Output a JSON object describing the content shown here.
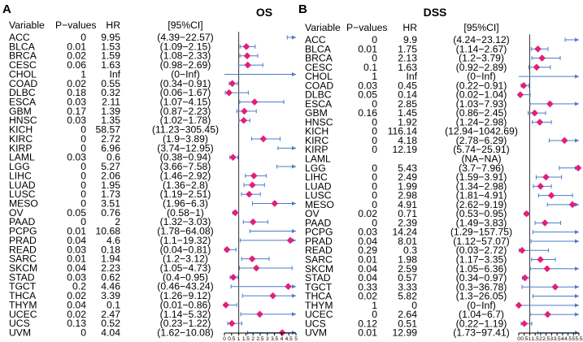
{
  "colors": {
    "ci_line": "#4a7cc9",
    "point": "#e0207a",
    "axis": "#000000",
    "reference": "#333333"
  },
  "chart_data": [
    {
      "type": "forest",
      "panel_letter": "A",
      "title": "OS",
      "column_headers": {
        "variable": "Variable",
        "pvalue": "P−values",
        "hr": "HR",
        "ci": "[95%CI]"
      },
      "axis": {
        "reference": 1,
        "xlim": [
          0,
          5
        ],
        "ticks": [
          0,
          0.5,
          1,
          1.5,
          2,
          2.5,
          3,
          3.5,
          4,
          4.5,
          5
        ],
        "tick_labels": [
          "0",
          "0.5",
          "1",
          "1.5",
          "2",
          "2.5",
          "3",
          "3.5",
          "4",
          "4.5",
          "5"
        ]
      },
      "rows": [
        {
          "variable": "ACC",
          "pvalue": "0",
          "hr_text": "9.95",
          "ci_text": "(4.39−22.57)",
          "hr": 9.95,
          "lo": 4.39,
          "hi": 22.57
        },
        {
          "variable": "BLCA",
          "pvalue": "0.01",
          "hr_text": "1.53",
          "ci_text": "(1.09−2.15)",
          "hr": 1.53,
          "lo": 1.09,
          "hi": 2.15
        },
        {
          "variable": "BRCA",
          "pvalue": "0.02",
          "hr_text": "1.59",
          "ci_text": "(1.08−2.33)",
          "hr": 1.59,
          "lo": 1.08,
          "hi": 2.33
        },
        {
          "variable": "CESC",
          "pvalue": "0.06",
          "hr_text": "1.63",
          "ci_text": "(0.98−2.69)",
          "hr": 1.63,
          "lo": 0.98,
          "hi": 2.69
        },
        {
          "variable": "CHOL",
          "pvalue": "1",
          "hr_text": "Inf",
          "ci_text": "(0−Inf)",
          "hr": null,
          "lo": 0,
          "hi": null
        },
        {
          "variable": "COAD",
          "pvalue": "0.02",
          "hr_text": "0.55",
          "ci_text": "(0.34−0.91)",
          "hr": 0.55,
          "lo": 0.34,
          "hi": 0.91
        },
        {
          "variable": "DLBC",
          "pvalue": "0.18",
          "hr_text": "0.32",
          "ci_text": "(0.06−1.67)",
          "hr": 0.32,
          "lo": 0.06,
          "hi": 1.67
        },
        {
          "variable": "ESCA",
          "pvalue": "0.03",
          "hr_text": "2.11",
          "ci_text": "(1.07−4.15)",
          "hr": 2.11,
          "lo": 1.07,
          "hi": 4.15
        },
        {
          "variable": "GBM",
          "pvalue": "0.17",
          "hr_text": "1.39",
          "ci_text": "(0.87−2.23)",
          "hr": 1.39,
          "lo": 0.87,
          "hi": 2.23
        },
        {
          "variable": "HNSC",
          "pvalue": "0.03",
          "hr_text": "1.35",
          "ci_text": "(1.02−1.78)",
          "hr": 1.35,
          "lo": 1.02,
          "hi": 1.78
        },
        {
          "variable": "KICH",
          "pvalue": "0",
          "hr_text": "58.57",
          "ci_text": "(11.23−305.45)",
          "hr": 58.57,
          "lo": 11.23,
          "hi": 305.45
        },
        {
          "variable": "KIRC",
          "pvalue": "0",
          "hr_text": "2.72",
          "ci_text": "(1.9−3.89)",
          "hr": 2.72,
          "lo": 1.9,
          "hi": 3.89
        },
        {
          "variable": "KIRP",
          "pvalue": "0",
          "hr_text": "6.96",
          "ci_text": "(3.74−12.95)",
          "hr": 6.96,
          "lo": 3.74,
          "hi": 12.95
        },
        {
          "variable": "LAML",
          "pvalue": "0.03",
          "hr_text": "0.6",
          "ci_text": "(0.38−0.94)",
          "hr": 0.6,
          "lo": 0.38,
          "hi": 0.94
        },
        {
          "variable": "LGG",
          "pvalue": "0",
          "hr_text": "5.27",
          "ci_text": "(3.66−7.58)",
          "hr": 5.27,
          "lo": 3.66,
          "hi": 7.58
        },
        {
          "variable": "LIHC",
          "pvalue": "0",
          "hr_text": "2.06",
          "ci_text": "(1.46−2.92)",
          "hr": 2.06,
          "lo": 1.46,
          "hi": 2.92
        },
        {
          "variable": "LUAD",
          "pvalue": "0",
          "hr_text": "1.95",
          "ci_text": "(1.36−2.8)",
          "hr": 1.95,
          "lo": 1.36,
          "hi": 2.8
        },
        {
          "variable": "LUSC",
          "pvalue": "0",
          "hr_text": "1.73",
          "ci_text": "(1.19−2.51)",
          "hr": 1.73,
          "lo": 1.19,
          "hi": 2.51
        },
        {
          "variable": "MESO",
          "pvalue": "0",
          "hr_text": "3.51",
          "ci_text": "(1.96−6.3)",
          "hr": 3.51,
          "lo": 1.96,
          "hi": 6.3
        },
        {
          "variable": "OV",
          "pvalue": "0.05",
          "hr_text": "0.76",
          "ci_text": "(0.58−1)",
          "hr": 0.76,
          "lo": 0.58,
          "hi": 1
        },
        {
          "variable": "PAAD",
          "pvalue": "0",
          "hr_text": "2",
          "ci_text": "(1.32−3.03)",
          "hr": 2,
          "lo": 1.32,
          "hi": 3.03
        },
        {
          "variable": "PCPG",
          "pvalue": "0.01",
          "hr_text": "10.68",
          "ci_text": "(1.78−64.08)",
          "hr": 10.68,
          "lo": 1.78,
          "hi": 64.08
        },
        {
          "variable": "PRAD",
          "pvalue": "0.04",
          "hr_text": "4.6",
          "ci_text": "(1.1−19.32)",
          "hr": 4.6,
          "lo": 1.1,
          "hi": 19.32
        },
        {
          "variable": "READ",
          "pvalue": "0.03",
          "hr_text": "0.18",
          "ci_text": "(0.04−0.81)",
          "hr": 0.18,
          "lo": 0.04,
          "hi": 0.81
        },
        {
          "variable": "SARC",
          "pvalue": "0.01",
          "hr_text": "1.94",
          "ci_text": "(1.2−3.12)",
          "hr": 1.94,
          "lo": 1.2,
          "hi": 3.12
        },
        {
          "variable": "SKCM",
          "pvalue": "0.04",
          "hr_text": "2.23",
          "ci_text": "(1.05−4.73)",
          "hr": 2.23,
          "lo": 1.05,
          "hi": 4.73
        },
        {
          "variable": "STAD",
          "pvalue": "0.03",
          "hr_text": "0.62",
          "ci_text": "(0.4−0.95)",
          "hr": 0.62,
          "lo": 0.4,
          "hi": 0.95
        },
        {
          "variable": "TGCT",
          "pvalue": "0.2",
          "hr_text": "4.46",
          "ci_text": "(0.46−43.24)",
          "hr": 4.46,
          "lo": 0.46,
          "hi": 43.24
        },
        {
          "variable": "THCA",
          "pvalue": "0.02",
          "hr_text": "3.39",
          "ci_text": "(1.26−9.12)",
          "hr": 3.39,
          "lo": 1.26,
          "hi": 9.12
        },
        {
          "variable": "THYM",
          "pvalue": "0.04",
          "hr_text": "0.1",
          "ci_text": "(0.01−0.86)",
          "hr": 0.1,
          "lo": 0.01,
          "hi": 0.86
        },
        {
          "variable": "UCEC",
          "pvalue": "0.02",
          "hr_text": "2.47",
          "ci_text": "(1.14−5.32)",
          "hr": 2.47,
          "lo": 1.14,
          "hi": 5.32
        },
        {
          "variable": "UCS",
          "pvalue": "0.13",
          "hr_text": "0.52",
          "ci_text": "(0.23−1.22)",
          "hr": 0.52,
          "lo": 0.23,
          "hi": 1.22
        },
        {
          "variable": "UVM",
          "pvalue": "0",
          "hr_text": "4.04",
          "ci_text": "(1.62−10.08)",
          "hr": 4.04,
          "lo": 1.62,
          "hi": 10.08
        }
      ]
    },
    {
      "type": "forest",
      "panel_letter": "B",
      "title": "DSS",
      "column_headers": {
        "variable": "Variable",
        "pvalue": "P−values",
        "hr": "HR",
        "ci": "[95%CI]"
      },
      "axis": {
        "reference": 1,
        "xlim": [
          0,
          5.5
        ],
        "ticks": [
          0,
          0.5,
          1,
          1.5,
          2,
          2.5,
          3,
          3.5,
          4,
          4.5,
          5,
          5.5
        ],
        "tick_labels": [
          "0",
          "0.5",
          "1",
          "1.5",
          "2",
          "2.5",
          "3",
          "3.5",
          "4",
          "4.5",
          "5",
          "5.5"
        ]
      },
      "rows": [
        {
          "variable": "ACC",
          "pvalue": "0",
          "hr_text": "9.9",
          "ci_text": "(4.24−23.12)",
          "hr": 9.9,
          "lo": 4.24,
          "hi": 23.12
        },
        {
          "variable": "BLCA",
          "pvalue": "0.01",
          "hr_text": "1.75",
          "ci_text": "(1.14−2.67)",
          "hr": 1.75,
          "lo": 1.14,
          "hi": 2.67
        },
        {
          "variable": "BRCA",
          "pvalue": "0",
          "hr_text": "2.13",
          "ci_text": "(1.2−3.79)",
          "hr": 2.13,
          "lo": 1.2,
          "hi": 3.79
        },
        {
          "variable": "CESC",
          "pvalue": "0.1",
          "hr_text": "1.63",
          "ci_text": "(0.92−2.89)",
          "hr": 1.63,
          "lo": 0.92,
          "hi": 2.89
        },
        {
          "variable": "CHOL",
          "pvalue": "1",
          "hr_text": "Inf",
          "ci_text": "(0−Inf)",
          "hr": null,
          "lo": 0,
          "hi": null
        },
        {
          "variable": "COAD",
          "pvalue": "0.03",
          "hr_text": "0.45",
          "ci_text": "(0.22−0.91)",
          "hr": 0.45,
          "lo": 0.22,
          "hi": 0.91
        },
        {
          "variable": "DLBC",
          "pvalue": "0.05",
          "hr_text": "0.14",
          "ci_text": "(0.02−1.04)",
          "hr": 0.14,
          "lo": 0.02,
          "hi": 1.04
        },
        {
          "variable": "ESCA",
          "pvalue": "0",
          "hr_text": "2.85",
          "ci_text": "(1.03−7.93)",
          "hr": 2.85,
          "lo": 1.03,
          "hi": 7.93
        },
        {
          "variable": "GBM",
          "pvalue": "0.16",
          "hr_text": "1.45",
          "ci_text": "(0.86−2.45)",
          "hr": 1.45,
          "lo": 0.86,
          "hi": 2.45
        },
        {
          "variable": "HNSC",
          "pvalue": "0",
          "hr_text": "1.92",
          "ci_text": "(1.24−2.98)",
          "hr": 1.92,
          "lo": 1.24,
          "hi": 2.98
        },
        {
          "variable": "KICH",
          "pvalue": "0",
          "hr_text": "116.14",
          "ci_text": "(12.94−1042.69)",
          "hr": 116.14,
          "lo": 12.94,
          "hi": 1042.69
        },
        {
          "variable": "KIRC",
          "pvalue": "0",
          "hr_text": "4.18",
          "ci_text": "(2.78−6.29)",
          "hr": 4.18,
          "lo": 2.78,
          "hi": 6.29
        },
        {
          "variable": "KIRP",
          "pvalue": "0",
          "hr_text": "12.19",
          "ci_text": "(5.74−25.91)",
          "hr": 12.19,
          "lo": 5.74,
          "hi": 25.91
        },
        {
          "variable": "LAML",
          "pvalue": "",
          "hr_text": "",
          "ci_text": "(NA−NA)",
          "hr": null,
          "lo": null,
          "hi": null
        },
        {
          "variable": "LGG",
          "pvalue": "0",
          "hr_text": "5.43",
          "ci_text": "(3.7−7.96)",
          "hr": 5.43,
          "lo": 3.7,
          "hi": 7.96
        },
        {
          "variable": "LIHC",
          "pvalue": "0",
          "hr_text": "2.49",
          "ci_text": "(1.59−3.91)",
          "hr": 2.49,
          "lo": 1.59,
          "hi": 3.91
        },
        {
          "variable": "LUAD",
          "pvalue": "0",
          "hr_text": "1.99",
          "ci_text": "(1.34−2.98)",
          "hr": 1.99,
          "lo": 1.34,
          "hi": 2.98
        },
        {
          "variable": "LUSC",
          "pvalue": "0",
          "hr_text": "2.98",
          "ci_text": "(1.81−4.91)",
          "hr": 2.98,
          "lo": 1.81,
          "hi": 4.91
        },
        {
          "variable": "MESO",
          "pvalue": "0",
          "hr_text": "4.91",
          "ci_text": "(2.62−9.19)",
          "hr": 4.91,
          "lo": 2.62,
          "hi": 9.19
        },
        {
          "variable": "OV",
          "pvalue": "0.02",
          "hr_text": "0.71",
          "ci_text": "(0.53−0.95)",
          "hr": 0.71,
          "lo": 0.53,
          "hi": 0.95
        },
        {
          "variable": "PAAD",
          "pvalue": "0",
          "hr_text": "2.39",
          "ci_text": "(1.49−3.83)",
          "hr": 2.39,
          "lo": 1.49,
          "hi": 3.83
        },
        {
          "variable": "PCPG",
          "pvalue": "0.03",
          "hr_text": "14.24",
          "ci_text": "(1.29−157.75)",
          "hr": 14.24,
          "lo": 1.29,
          "hi": 157.75
        },
        {
          "variable": "PRAD",
          "pvalue": "0.04",
          "hr_text": "8.01",
          "ci_text": "(1.12−57.07)",
          "hr": 8.01,
          "lo": 1.12,
          "hi": 57.07
        },
        {
          "variable": "READ",
          "pvalue": "0.29",
          "hr_text": "0.3",
          "ci_text": "(0.03−2.72)",
          "hr": 0.3,
          "lo": 0.03,
          "hi": 2.72
        },
        {
          "variable": "SARC",
          "pvalue": "0.01",
          "hr_text": "1.98",
          "ci_text": "(1.17−3.35)",
          "hr": 1.98,
          "lo": 1.17,
          "hi": 3.35
        },
        {
          "variable": "SKCM",
          "pvalue": "0.04",
          "hr_text": "2.59",
          "ci_text": "(1.05−6.36)",
          "hr": 2.59,
          "lo": 1.05,
          "hi": 6.36
        },
        {
          "variable": "STAD",
          "pvalue": "0.04",
          "hr_text": "0.57",
          "ci_text": "(0.34−0.97)",
          "hr": 0.57,
          "lo": 0.34,
          "hi": 0.97
        },
        {
          "variable": "TGCT",
          "pvalue": "0.33",
          "hr_text": "3.33",
          "ci_text": "(0.3−36.78)",
          "hr": 3.33,
          "lo": 0.3,
          "hi": 36.78
        },
        {
          "variable": "THCA",
          "pvalue": "0.02",
          "hr_text": "5.82",
          "ci_text": "(1.3−26.05)",
          "hr": 5.82,
          "lo": 1.3,
          "hi": 26.05
        },
        {
          "variable": "THYM",
          "pvalue": "1",
          "hr_text": "0",
          "ci_text": "(0−Inf)",
          "hr": 0,
          "lo": 0,
          "hi": null
        },
        {
          "variable": "UCEC",
          "pvalue": "0",
          "hr_text": "2.64",
          "ci_text": "(1.04−6.7)",
          "hr": 2.64,
          "lo": 1.04,
          "hi": 6.7
        },
        {
          "variable": "UCS",
          "pvalue": "0.12",
          "hr_text": "0.51",
          "ci_text": "(0.22−1.19)",
          "hr": 0.51,
          "lo": 0.22,
          "hi": 1.19
        },
        {
          "variable": "UVM",
          "pvalue": "0.01",
          "hr_text": "12.99",
          "ci_text": "(1.73−97.41)",
          "hr": 12.99,
          "lo": 1.73,
          "hi": 97.41
        }
      ]
    }
  ]
}
